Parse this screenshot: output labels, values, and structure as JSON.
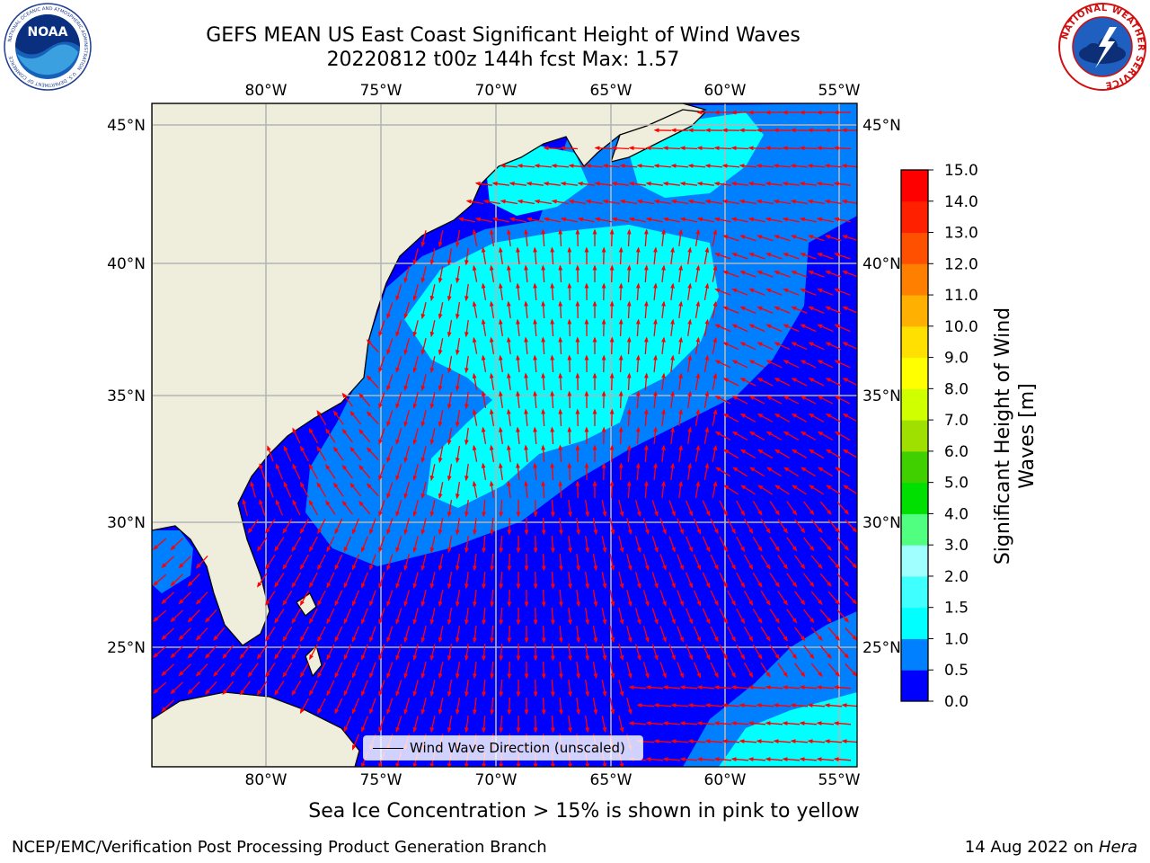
{
  "title_line1": "GEFS MEAN US East Coast Significant Height of Wind Waves",
  "title_line2": "20220812 t00z 144h fcst   Max: 1.57",
  "logos": {
    "noaa_text": "NOAA",
    "noaa_ring_text": "NATIONAL OCEANIC AND ATMOSPHERIC ADMINISTRATION",
    "noaa_ring_text_bottom": "U.S. DEPARTMENT OF COMMERCE",
    "nws_ring_text": "NATIONAL WEATHER SERVICE"
  },
  "map": {
    "lon_labels": [
      "80°W",
      "75°W",
      "70°W",
      "65°W",
      "60°W",
      "55°W"
    ],
    "lat_labels": [
      "45°N",
      "40°N",
      "35°N",
      "30°N",
      "25°N"
    ],
    "colors": {
      "land": "#efeddc",
      "coast": "#000000",
      "grid": "#b4b4b4",
      "arrow": "#ff0000"
    },
    "legend_label": "Wind Wave Direction (unscaled)"
  },
  "colorbar": {
    "label_line1": "Significant Height of Wind",
    "label_line2": "Waves [m]",
    "levels": [
      "0.0",
      "0.5",
      "1.0",
      "1.5",
      "2.0",
      "3.0",
      "4.0",
      "5.0",
      "6.0",
      "7.0",
      "8.0",
      "9.0",
      "10.0",
      "11.0",
      "12.0",
      "13.0",
      "14.0",
      "15.0"
    ],
    "colors": [
      "#0000ff",
      "#0080ff",
      "#00ffff",
      "#40ffff",
      "#a0ffff",
      "#50ff80",
      "#00e000",
      "#40d000",
      "#a0e000",
      "#d0ff00",
      "#ffff00",
      "#ffe000",
      "#ffb000",
      "#ff8000",
      "#ff5000",
      "#ff2000",
      "#ff0000"
    ]
  },
  "ice_note": "Sea Ice Concentration > 15% is shown in pink to yellow",
  "footer_left": "NCEP/EMC/Verification Post Processing Product Generation Branch",
  "footer_date": "14 Aug 2022 on",
  "footer_machine": "Hera"
}
